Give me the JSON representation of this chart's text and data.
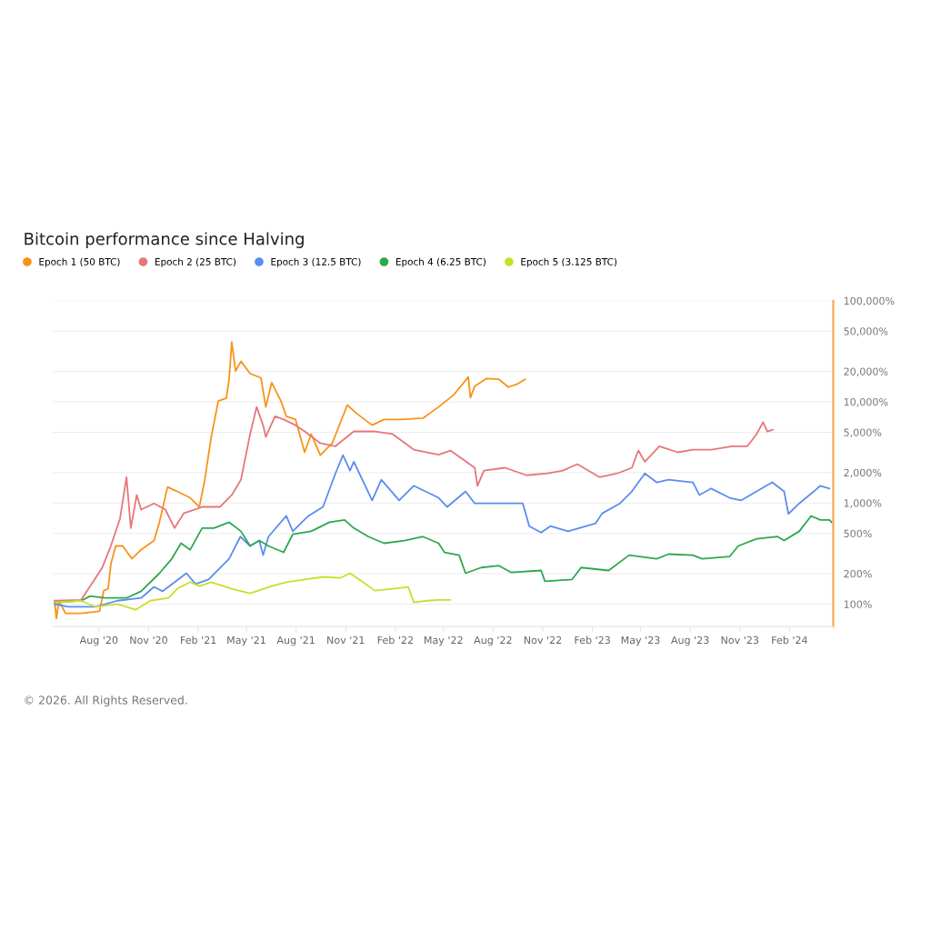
{
  "chart_data": {
    "type": "line",
    "title": "Bitcoin performance since Halving",
    "annotations": [
      "© 2026. All Rights Reserved."
    ],
    "legend": "top left",
    "grid": "y",
    "log": "y",
    "marker": "none",
    "line_style": "solid",
    "xlim": [
      "2020-05-08",
      "2024-04-22"
    ],
    "xticks": [
      {
        "value": "2020-08-01",
        "label": "Aug '20"
      },
      {
        "value": "2020-11-01",
        "label": "Nov '20"
      },
      {
        "value": "2021-02-01",
        "label": "Feb '21"
      },
      {
        "value": "2021-05-01",
        "label": "May '21"
      },
      {
        "value": "2021-08-01",
        "label": "Aug '21"
      },
      {
        "value": "2021-11-01",
        "label": "Nov '21"
      },
      {
        "value": "2022-02-01",
        "label": "Feb '22"
      },
      {
        "value": "2022-05-01",
        "label": "May '22"
      },
      {
        "value": "2022-08-01",
        "label": "Aug '22"
      },
      {
        "value": "2022-11-01",
        "label": "Nov '22"
      },
      {
        "value": "2023-02-01",
        "label": "Feb '23"
      },
      {
        "value": "2023-05-01",
        "label": "May '23"
      },
      {
        "value": "2023-08-01",
        "label": "Aug '23"
      },
      {
        "value": "2023-11-01",
        "label": "Nov '23"
      },
      {
        "value": "2024-02-01",
        "label": "Feb '24"
      }
    ],
    "ylim": [
      60,
      100000
    ],
    "yticks": [
      {
        "value": 100,
        "label": "100%"
      },
      {
        "value": 200,
        "label": "200%"
      },
      {
        "value": 500,
        "label": "500%"
      },
      {
        "value": 1000,
        "label": "1,000%"
      },
      {
        "value": 2000,
        "label": "2,000%"
      },
      {
        "value": 5000,
        "label": "5,000%"
      },
      {
        "value": 10000,
        "label": "10,000%"
      },
      {
        "value": 20000,
        "label": "20,000%"
      },
      {
        "value": 50000,
        "label": "50,000%"
      },
      {
        "value": 100000,
        "label": "100,000%"
      }
    ],
    "series": [
      {
        "name": "Epoch 1 (50 BTC)",
        "color": "#f7931a",
        "x": [
          "2020-05-11",
          "2020-05-14",
          "2020-05-19",
          "2020-05-31",
          "2020-06-29",
          "2020-08-02",
          "2020-08-10",
          "2020-08-18",
          "2020-08-23",
          "2020-09-01",
          "2020-09-14",
          "2020-10-01",
          "2020-10-18",
          "2020-11-11",
          "2020-11-21",
          "2020-12-06",
          "2020-12-24",
          "2021-01-17",
          "2021-02-03",
          "2021-02-13",
          "2021-02-25",
          "2021-03-10",
          "2021-03-25",
          "2021-03-30",
          "2021-04-04",
          "2021-04-11",
          "2021-04-21",
          "2021-05-08",
          "2021-05-28",
          "2021-06-06",
          "2021-06-17",
          "2021-07-04",
          "2021-07-14",
          "2021-07-31",
          "2021-08-17",
          "2021-08-29",
          "2021-09-15",
          "2021-10-07",
          "2021-11-04",
          "2021-11-21",
          "2021-12-20",
          "2022-01-11",
          "2022-02-13",
          "2022-03-24",
          "2022-04-22",
          "2022-05-20",
          "2022-06-16",
          "2022-06-20",
          "2022-06-28",
          "2022-07-20",
          "2022-08-12",
          "2022-08-29",
          "2022-09-15",
          "2022-09-29"
        ],
        "values": [
          108,
          72,
          108,
          81,
          81,
          85,
          136,
          142,
          248,
          376,
          376,
          281,
          345,
          425,
          645,
          1440,
          1300,
          1125,
          915,
          1700,
          4500,
          10200,
          10900,
          16700,
          39000,
          20200,
          25200,
          19000,
          17300,
          8900,
          15500,
          10200,
          7200,
          6700,
          3170,
          4800,
          2970,
          3900,
          9300,
          7700,
          5880,
          6700,
          6700,
          6900,
          8900,
          11700,
          17600,
          11000,
          14300,
          17000,
          16700,
          14000,
          15000,
          16700
        ]
      },
      {
        "name": "Epoch 2 (25 BTC)",
        "color": "#e8767a",
        "x": [
          "2020-05-11",
          "2020-06-29",
          "2020-07-16",
          "2020-08-07",
          "2020-08-23",
          "2020-09-09",
          "2020-09-21",
          "2020-09-29",
          "2020-10-10",
          "2020-10-18",
          "2020-11-11",
          "2020-12-02",
          "2020-12-19",
          "2021-01-05",
          "2021-02-08",
          "2021-03-13",
          "2021-04-04",
          "2021-04-21",
          "2021-05-08",
          "2021-05-20",
          "2021-06-01",
          "2021-06-06",
          "2021-06-23",
          "2021-07-09",
          "2021-07-31",
          "2021-08-17",
          "2021-09-15",
          "2021-10-13",
          "2021-11-16",
          "2021-12-25",
          "2022-01-27",
          "2022-03-07",
          "2022-04-22",
          "2022-05-14",
          "2022-06-28",
          "2022-07-03",
          "2022-07-15",
          "2022-08-23",
          "2022-10-02",
          "2022-11-10",
          "2022-12-08",
          "2023-01-04",
          "2023-02-14",
          "2023-03-19",
          "2023-04-15",
          "2023-04-27",
          "2023-05-09",
          "2023-06-05",
          "2023-07-09",
          "2023-08-06",
          "2023-09-09",
          "2023-10-18",
          "2023-11-15",
          "2023-12-02",
          "2023-12-14",
          "2023-12-22",
          "2024-01-01"
        ],
        "values": [
          108,
          110,
          151,
          229,
          376,
          700,
          1800,
          565,
          1200,
          860,
          990,
          860,
          565,
          790,
          915,
          915,
          1200,
          1700,
          4800,
          8900,
          5880,
          4500,
          7200,
          6700,
          5880,
          5100,
          3900,
          3640,
          5100,
          5100,
          4800,
          3370,
          3000,
          3300,
          2230,
          1480,
          2090,
          2230,
          1880,
          1960,
          2090,
          2420,
          1800,
          1960,
          2230,
          3300,
          2560,
          3640,
          3170,
          3370,
          3370,
          3640,
          3640,
          4800,
          6300,
          5100,
          5300
        ]
      },
      {
        "name": "Epoch 3 (12.5 BTC)",
        "color": "#5b8def",
        "x": [
          "2020-05-11",
          "2020-06-05",
          "2020-07-26",
          "2020-09-04",
          "2020-10-18",
          "2020-11-11",
          "2020-11-27",
          "2021-01-10",
          "2021-01-27",
          "2021-02-20",
          "2021-03-30",
          "2021-04-20",
          "2021-05-08",
          "2021-05-25",
          "2021-06-01",
          "2021-06-11",
          "2021-07-14",
          "2021-07-26",
          "2021-08-24",
          "2021-09-20",
          "2021-10-13",
          "2021-10-27",
          "2021-11-09",
          "2021-11-16",
          "2021-12-20",
          "2022-01-06",
          "2022-02-08",
          "2022-03-07",
          "2022-04-22",
          "2022-05-08",
          "2022-06-11",
          "2022-06-28",
          "2022-08-06",
          "2022-09-25",
          "2022-10-07",
          "2022-10-29",
          "2022-11-15",
          "2022-12-18",
          "2023-02-07",
          "2023-02-19",
          "2023-03-24",
          "2023-04-15",
          "2023-05-09",
          "2023-05-31",
          "2023-06-22",
          "2023-08-06",
          "2023-08-18",
          "2023-09-09",
          "2023-10-13",
          "2023-11-03",
          "2023-12-02",
          "2023-12-31",
          "2024-01-22",
          "2024-01-30",
          "2024-02-19",
          "2024-03-17",
          "2024-03-29",
          "2024-04-15"
        ],
        "values": [
          100,
          94,
          94,
          108,
          115,
          148,
          134,
          202,
          158,
          175,
          281,
          465,
          376,
          425,
          305,
          465,
          745,
          525,
          745,
          915,
          1960,
          2970,
          2090,
          2560,
          1060,
          1700,
          1060,
          1480,
          1125,
          915,
          1300,
          990,
          990,
          990,
          590,
          510,
          590,
          525,
          630,
          790,
          990,
          1300,
          1960,
          1600,
          1700,
          1600,
          1200,
          1390,
          1125,
          1060,
          1300,
          1600,
          1300,
          780,
          990,
          1300,
          1480,
          1390
        ]
      },
      {
        "name": "Epoch 4 (6.25 BTC)",
        "color": "#2ea84f",
        "x": [
          "2020-05-11",
          "2020-06-29",
          "2020-07-16",
          "2020-08-12",
          "2020-09-21",
          "2020-10-18",
          "2020-11-21",
          "2020-12-14",
          "2020-12-31",
          "2021-01-17",
          "2021-02-08",
          "2021-03-02",
          "2021-03-30",
          "2021-04-21",
          "2021-05-08",
          "2021-05-25",
          "2021-06-11",
          "2021-07-09",
          "2021-07-26",
          "2021-08-29",
          "2021-10-02",
          "2021-10-30",
          "2021-11-16",
          "2021-12-13",
          "2022-01-11",
          "2022-02-18",
          "2022-03-24",
          "2022-04-22",
          "2022-05-03",
          "2022-05-30",
          "2022-06-11",
          "2022-07-10",
          "2022-08-12",
          "2022-09-03",
          "2022-10-29",
          "2022-11-05",
          "2022-12-25",
          "2023-01-11",
          "2023-03-03",
          "2023-04-10",
          "2023-05-31",
          "2023-06-22",
          "2023-08-06",
          "2023-08-23",
          "2023-10-13",
          "2023-10-29",
          "2023-12-02",
          "2024-01-10",
          "2024-01-22",
          "2024-02-19",
          "2024-03-12",
          "2024-03-29",
          "2024-04-15",
          "2024-04-19"
        ],
        "values": [
          104,
          108,
          120,
          115,
          115,
          134,
          202,
          281,
          400,
          345,
          565,
          565,
          645,
          525,
          376,
          425,
          376,
          325,
          490,
          525,
          645,
          680,
          565,
          465,
          400,
          425,
          465,
          400,
          325,
          305,
          202,
          230,
          240,
          206,
          215,
          168,
          175,
          230,
          215,
          305,
          281,
          312,
          305,
          281,
          295,
          376,
          442,
          465,
          425,
          525,
          745,
          680,
          680,
          645
        ]
      },
      {
        "name": "Epoch 5 (3.125 BTC)",
        "color": "#c8df2a",
        "x": [
          "2020-05-11",
          "2020-06-29",
          "2020-07-26",
          "2020-09-04",
          "2020-10-08",
          "2020-11-04",
          "2020-12-08",
          "2020-12-24",
          "2021-01-17",
          "2021-02-03",
          "2021-02-25",
          "2021-04-04",
          "2021-05-08",
          "2021-06-17",
          "2021-07-14",
          "2021-08-17",
          "2021-09-20",
          "2021-10-23",
          "2021-11-09",
          "2021-12-03",
          "2021-12-25",
          "2022-01-27",
          "2022-02-25",
          "2022-03-07",
          "2022-03-31",
          "2022-04-22",
          "2022-05-14"
        ],
        "values": [
          104,
          108,
          94,
          100,
          88,
          108,
          115,
          142,
          165,
          151,
          165,
          142,
          128,
          151,
          165,
          175,
          186,
          182,
          202,
          165,
          136,
          142,
          148,
          104,
          108,
          110,
          110
        ]
      }
    ]
  }
}
